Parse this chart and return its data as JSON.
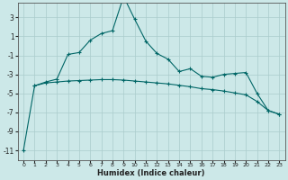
{
  "xlabel": "Humidex (Indice chaleur)",
  "bg_color": "#cce8e8",
  "grid_color": "#aacccc",
  "line_color": "#006666",
  "xlim": [
    -0.5,
    23.5
  ],
  "ylim": [
    -12.0,
    4.5
  ],
  "yticks": [
    -11,
    -9,
    -7,
    -5,
    -3,
    -1,
    1,
    3
  ],
  "xticks": [
    0,
    1,
    2,
    3,
    4,
    5,
    6,
    7,
    8,
    9,
    10,
    11,
    12,
    13,
    14,
    15,
    16,
    17,
    18,
    19,
    20,
    21,
    22,
    23
  ],
  "line1_x": [
    0,
    1,
    2,
    3,
    4,
    5,
    6,
    7,
    8,
    9,
    10,
    11,
    12,
    13,
    14,
    15,
    16,
    17,
    18,
    19,
    20,
    21,
    22,
    23
  ],
  "line1_y": [
    -11.0,
    -4.2,
    -3.8,
    -3.5,
    -0.9,
    -0.7,
    0.6,
    1.3,
    1.6,
    5.2,
    2.8,
    0.5,
    -0.8,
    -1.4,
    -2.7,
    -2.4,
    -3.2,
    -3.3,
    -3.0,
    -2.9,
    -2.8,
    -5.0,
    -6.8,
    -7.2
  ],
  "line2_x": [
    1,
    2,
    3,
    4,
    5,
    6,
    7,
    8,
    9,
    10,
    11,
    12,
    13,
    14,
    15,
    16,
    17,
    18,
    19,
    20,
    21,
    22,
    23
  ],
  "line2_y": [
    -4.2,
    -3.9,
    -3.8,
    -3.7,
    -3.65,
    -3.6,
    -3.55,
    -3.55,
    -3.6,
    -3.7,
    -3.8,
    -3.9,
    -4.0,
    -4.15,
    -4.3,
    -4.5,
    -4.6,
    -4.75,
    -4.95,
    -5.15,
    -5.85,
    -6.8,
    -7.2
  ]
}
